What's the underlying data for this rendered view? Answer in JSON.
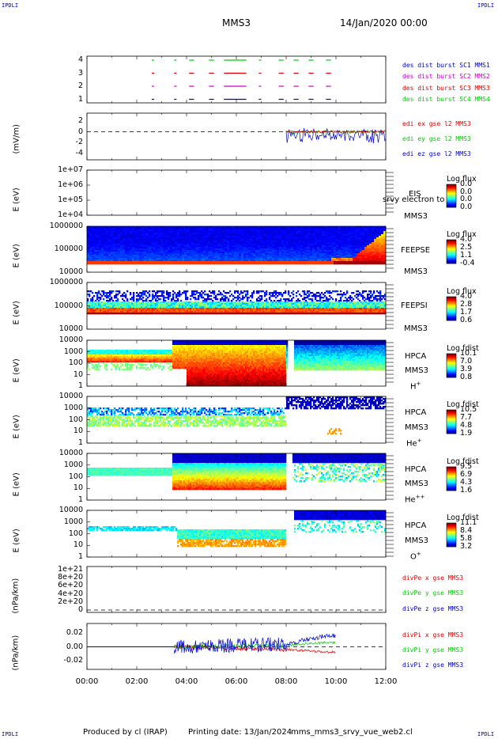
{
  "corners": {
    "tl": "IPDLI",
    "tr": "IPDLI",
    "bl": "IPDLI",
    "br": "IPDLI"
  },
  "header": {
    "spacecraft": "MMS3",
    "date": "14/Jan/2020 00:00"
  },
  "footer": {
    "producer": "Produced by cl (IRAP)",
    "printing": "Printing date: 13/Jan/2024",
    "file": "mms_mms3_srvy_vue_web2.cl"
  },
  "xaxis": {
    "ticks": [
      "00:00",
      "02:00",
      "04:00",
      "06:00",
      "08:00",
      "10:00",
      "12:00"
    ]
  },
  "colors": {
    "red": "#dd0000",
    "green": "#00cc00",
    "blue": "#0000cc",
    "magenta": "#cc00cc",
    "dash": "#000000"
  },
  "panels": {
    "burst": {
      "ticks": [
        "4",
        "3",
        "2",
        "1"
      ],
      "legend": [
        {
          "text": "des dist burst SC1 MMS1",
          "color": "#0000cc"
        },
        {
          "text": "des dist burst SC2 MMS2",
          "color": "#cc00cc"
        },
        {
          "text": "des dist burst SC3 MMS3",
          "color": "#dd0000"
        },
        {
          "text": "des dist burst SC4 MMS4",
          "color": "#00cc00"
        }
      ]
    },
    "edi": {
      "ylabel": "(mV/m)",
      "ticks": [
        "2",
        "0",
        "-2",
        "-4"
      ],
      "legend": [
        {
          "text": "edi ex gse l2 MMS3",
          "color": "#dd0000"
        },
        {
          "text": "edi ey gse l2 MMS3",
          "color": "#00cc00"
        },
        {
          "text": "edi ez gse l2 MMS3",
          "color": "#0000cc"
        }
      ]
    },
    "eis": {
      "ylabel": "E (eV)",
      "ticks": [
        "1e+07",
        "1e+06",
        "1e+05",
        "1e+04"
      ],
      "instrument": "EIS",
      "overlay": "srvy electron to",
      "sc": "MMS3",
      "cb_title": "Log flux",
      "cb_ticks": [
        "0.0",
        "0.0",
        "0.0",
        "0.0"
      ]
    },
    "feepse": {
      "ylabel": "E (eV)",
      "ticks": [
        "1000000",
        "100000",
        "10000"
      ],
      "instrument": "FEEPSE",
      "sc": "MMS3",
      "cb_title": "Log flux",
      "cb_ticks": [
        "4.0",
        "2.5",
        "1.1",
        "-0.4"
      ]
    },
    "feepsi": {
      "ylabel": "E (eV)",
      "ticks": [
        "1000000",
        "100000",
        "10000"
      ],
      "instrument": "FEEPSI",
      "sc": "MMS3",
      "cb_title": "Log flux",
      "cb_ticks": [
        "4.0",
        "2.8",
        "1.7",
        "0.6"
      ]
    },
    "hpca_h": {
      "ylabel": "E (eV)",
      "ticks": [
        "10000",
        "1000",
        "100",
        "10",
        "1"
      ],
      "instrument": "HPCA",
      "sc": "MMS3",
      "species": "H",
      "charge": "+",
      "cb_title": "Log fdist",
      "cb_ticks": [
        "10.1",
        "7.0",
        "3.9",
        "0.8"
      ]
    },
    "hpca_he1": {
      "ylabel": "E (eV)",
      "ticks": [
        "10000",
        "1000",
        "100",
        "10",
        "1"
      ],
      "instrument": "HPCA",
      "sc": "MMS3",
      "species": "He",
      "charge": "+",
      "cb_title": "Log fdist",
      "cb_ticks": [
        "10.5",
        "7.7",
        "4.8",
        "1.9"
      ]
    },
    "hpca_he2": {
      "ylabel": "E (eV)",
      "ticks": [
        "10000",
        "1000",
        "100",
        "10",
        "1"
      ],
      "instrument": "HPCA",
      "sc": "MMS3",
      "species": "He",
      "charge": "++",
      "cb_title": "Log fdist",
      "cb_ticks": [
        "9.5",
        "6.9",
        "4.3",
        "1.6"
      ]
    },
    "hpca_o": {
      "ylabel": "E (eV)",
      "ticks": [
        "10000",
        "1000",
        "100",
        "10",
        "1"
      ],
      "instrument": "HPCA",
      "sc": "MMS3",
      "species": "O",
      "charge": "+",
      "cb_title": "Log fdist",
      "cb_ticks": [
        "11.1",
        "8.4",
        "5.8",
        "3.2"
      ]
    },
    "divpe": {
      "ylabel": "(nPa/km)",
      "ticks": [
        "1e+21",
        "8e+20",
        "6e+20",
        "4e+20",
        "2e+20",
        "0"
      ],
      "legend": [
        {
          "text": "divPe x gse MMS3",
          "color": "#dd0000"
        },
        {
          "text": "divPe y gse MMS3",
          "color": "#00cc00"
        },
        {
          "text": "divPe z gse MMS3",
          "color": "#0000cc"
        }
      ]
    },
    "divpi": {
      "ylabel": "(nPa/km)",
      "ticks": [
        "0.02",
        "0.00",
        "-0.02"
      ],
      "legend": [
        {
          "text": "divPi x gse MMS3",
          "color": "#dd0000"
        },
        {
          "text": "divPi y gse MMS3",
          "color": "#00cc00"
        },
        {
          "text": "divPi z gse MMS3",
          "color": "#0000cc"
        }
      ]
    }
  },
  "chart_data": {
    "type": "line",
    "title": "MMS3 14/Jan/2020 00:00",
    "x_range": [
      "00:00",
      "12:00"
    ],
    "burst_intervals": {
      "MMS1": [
        [
          2.6,
          2.7
        ],
        [
          3.5,
          3.6
        ],
        [
          4.1,
          4.3
        ],
        [
          4.9,
          5.1
        ],
        [
          5.5,
          6.4
        ],
        [
          6.9,
          7.0
        ],
        [
          7.7,
          7.9
        ],
        [
          8.3,
          8.5
        ],
        [
          8.9,
          9.1
        ],
        [
          9.6,
          9.8
        ]
      ],
      "MMS2": [
        [
          2.6,
          2.7
        ],
        [
          3.5,
          3.6
        ],
        [
          4.1,
          4.3
        ],
        [
          4.9,
          5.1
        ],
        [
          5.5,
          6.4
        ],
        [
          6.9,
          7.0
        ],
        [
          7.7,
          7.9
        ],
        [
          8.3,
          8.5
        ],
        [
          8.9,
          9.1
        ],
        [
          9.6,
          9.8
        ]
      ],
      "MMS3": [
        [
          2.6,
          2.7
        ],
        [
          3.5,
          3.6
        ],
        [
          4.1,
          4.3
        ],
        [
          4.9,
          5.1
        ],
        [
          5.5,
          6.4
        ],
        [
          6.9,
          7.0
        ],
        [
          7.7,
          7.9
        ],
        [
          8.3,
          8.5
        ],
        [
          8.9,
          9.1
        ],
        [
          9.6,
          9.8
        ]
      ],
      "MMS4": [
        [
          2.6,
          2.7
        ],
        [
          3.5,
          3.6
        ],
        [
          4.1,
          4.3
        ],
        [
          4.9,
          5.1
        ],
        [
          5.5,
          6.4
        ],
        [
          6.9,
          7.0
        ],
        [
          7.7,
          7.9
        ],
        [
          8.3,
          8.5
        ],
        [
          8.9,
          9.1
        ],
        [
          9.6,
          9.8
        ]
      ]
    },
    "edi_ylim": [
      -4.5,
      3
    ],
    "edi_series_start": "08:00",
    "divpe_ylim": [
      0,
      1.1e+21
    ],
    "divpi_ylim": [
      -0.03,
      0.03
    ],
    "divpi_series": [
      {
        "name": "divPi x gse MMS3",
        "x": [
          "04:00",
          "06:00",
          "08:00",
          "08:30",
          "09:00",
          "09:30",
          "10:00"
        ],
        "y": [
          0.0,
          -0.002,
          -0.004,
          -0.005,
          -0.006,
          -0.007,
          -0.008
        ]
      },
      {
        "name": "divPi y gse MMS3",
        "x": [
          "04:00",
          "06:00",
          "08:00",
          "08:30",
          "09:00",
          "09:30",
          "10:00"
        ],
        "y": [
          0.0,
          0.001,
          0.002,
          0.004,
          0.005,
          0.006,
          0.006
        ]
      },
      {
        "name": "divPi z gse MMS3",
        "x": [
          "04:00",
          "06:00",
          "08:00",
          "08:30",
          "09:00",
          "09:30",
          "10:00"
        ],
        "y": [
          0.0,
          0.002,
          0.004,
          0.008,
          0.012,
          0.015,
          0.016
        ]
      }
    ]
  }
}
